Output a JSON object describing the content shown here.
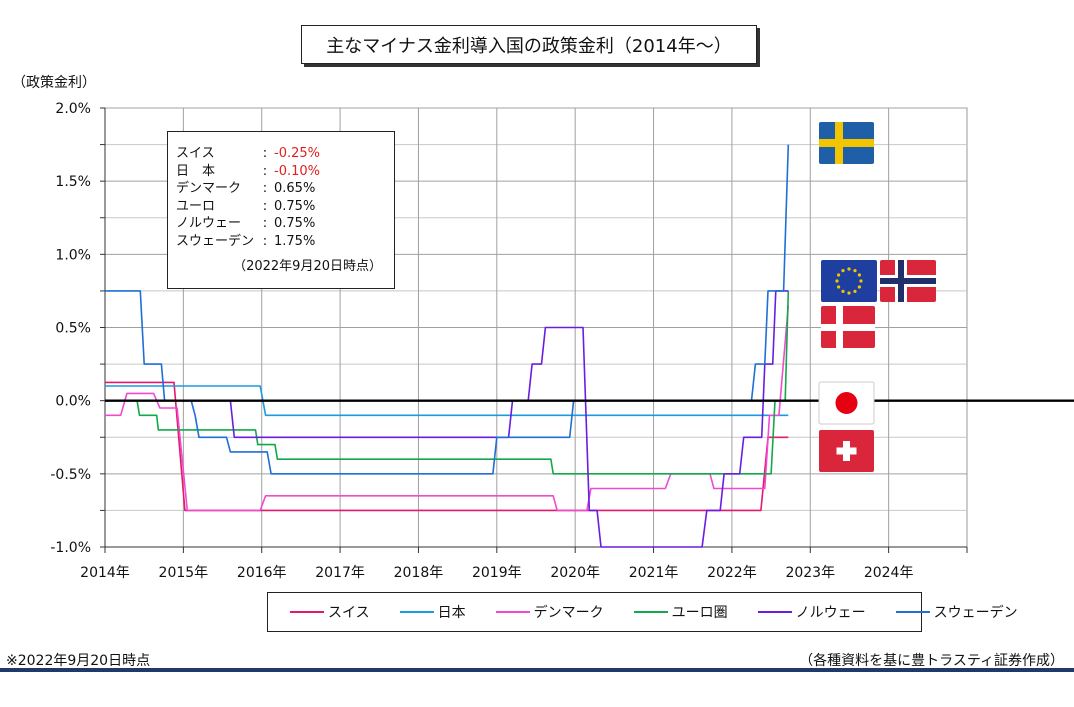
{
  "title": "主なマイナス金利導入国の政策金利（2014年～）",
  "ylabel": "（政策金利）",
  "footnote": "※2022年9月20日時点",
  "source": "（各種資料を基に豊トラスティ証券作成）",
  "infobox": {
    "rows": [
      {
        "name": "スイス",
        "value": "-0.25%",
        "negative": true
      },
      {
        "name": "日　本",
        "value": "-0.10%",
        "negative": true
      },
      {
        "name": "デンマーク",
        "value": "0.65%",
        "negative": false
      },
      {
        "name": "ユーロ",
        "value": "0.75%",
        "negative": false
      },
      {
        "name": "ノルウェー",
        "value": "0.75%",
        "negative": false
      },
      {
        "name": "スウェーデン",
        "value": "1.75%",
        "negative": false
      }
    ],
    "note": "（2022年9月20日時点）"
  },
  "flags": [
    {
      "icon": "sweden-flag-icon",
      "colors": [
        "#1f5fa8",
        "#f2c500"
      ]
    },
    {
      "icon": "eu-flag-icon",
      "colors": [
        "#1f3fa0",
        "#f2c500"
      ]
    },
    {
      "icon": "norway-flag-icon",
      "colors": [
        "#d9263a",
        "#ffffff",
        "#1f2f6b"
      ]
    },
    {
      "icon": "denmark-flag-icon",
      "colors": [
        "#d9263a",
        "#ffffff"
      ]
    },
    {
      "icon": "japan-flag-icon",
      "colors": [
        "#ffffff",
        "#e60012"
      ]
    },
    {
      "icon": "switzerland-flag-icon",
      "colors": [
        "#d9263a",
        "#ffffff"
      ]
    }
  ],
  "chart_data": {
    "type": "line",
    "x_unit": "year",
    "xlim": [
      2014,
      2025
    ],
    "ylim": [
      -1.0,
      2.0
    ],
    "yticks": [
      2.0,
      1.5,
      1.0,
      0.5,
      0.0,
      -0.5,
      -1.0
    ],
    "ytick_labels": [
      "2.0%",
      "1.5%",
      "1.0%",
      "0.5%",
      "0.0%",
      "-0.5%",
      "-1.0%"
    ],
    "xticks": [
      2014,
      2015,
      2016,
      2017,
      2018,
      2019,
      2020,
      2021,
      2022,
      2023,
      2024
    ],
    "xtick_labels": [
      "2014年",
      "2015年",
      "2016年",
      "2017年",
      "2018年",
      "2019年",
      "2020年",
      "2021年",
      "2022年",
      "2023年",
      "2024年"
    ],
    "grid": true,
    "legend_position": "bottom",
    "series": [
      {
        "name": "スイス",
        "color": "#e3196d",
        "points": [
          [
            2014.0,
            0.125
          ],
          [
            2014.88,
            0.125
          ],
          [
            2015.02,
            -0.75
          ],
          [
            2022.37,
            -0.75
          ],
          [
            2022.46,
            -0.25
          ],
          [
            2022.72,
            -0.25
          ]
        ]
      },
      {
        "name": "日本",
        "color": "#1a9be0",
        "points": [
          [
            2014.0,
            0.1
          ],
          [
            2015.98,
            0.1
          ],
          [
            2016.05,
            -0.1
          ],
          [
            2022.72,
            -0.1
          ]
        ]
      },
      {
        "name": "デンマーク",
        "color": "#f04bd0",
        "points": [
          [
            2014.0,
            -0.1
          ],
          [
            2014.2,
            -0.1
          ],
          [
            2014.28,
            0.05
          ],
          [
            2014.62,
            0.05
          ],
          [
            2014.7,
            -0.05
          ],
          [
            2014.92,
            -0.05
          ],
          [
            2015.05,
            -0.75
          ],
          [
            2015.98,
            -0.75
          ],
          [
            2016.05,
            -0.65
          ],
          [
            2019.72,
            -0.65
          ],
          [
            2019.77,
            -0.75
          ],
          [
            2020.15,
            -0.75
          ],
          [
            2020.2,
            -0.6
          ],
          [
            2021.15,
            -0.6
          ],
          [
            2021.22,
            -0.5
          ],
          [
            2021.72,
            -0.5
          ],
          [
            2021.77,
            -0.6
          ],
          [
            2022.42,
            -0.6
          ],
          [
            2022.48,
            -0.1
          ],
          [
            2022.6,
            -0.1
          ],
          [
            2022.72,
            0.65
          ]
        ]
      },
      {
        "name": "ユーロ圏",
        "color": "#13a84a",
        "points": [
          [
            2014.0,
            0.0
          ],
          [
            2014.41,
            0.0
          ],
          [
            2014.44,
            -0.1
          ],
          [
            2014.66,
            -0.1
          ],
          [
            2014.68,
            -0.2
          ],
          [
            2015.92,
            -0.2
          ],
          [
            2015.95,
            -0.3
          ],
          [
            2016.17,
            -0.3
          ],
          [
            2016.2,
            -0.4
          ],
          [
            2019.69,
            -0.4
          ],
          [
            2019.72,
            -0.5
          ],
          [
            2022.5,
            -0.5
          ],
          [
            2022.55,
            0.0
          ],
          [
            2022.68,
            0.0
          ],
          [
            2022.72,
            0.75
          ]
        ]
      },
      {
        "name": "ノルウェー",
        "color": "#6a1de0",
        "points": [
          [
            2014.0,
            0.0
          ],
          [
            2015.6,
            0.0
          ],
          [
            2015.65,
            -0.25
          ],
          [
            2019.15,
            -0.25
          ],
          [
            2019.2,
            0.0
          ],
          [
            2019.4,
            0.0
          ],
          [
            2019.45,
            0.25
          ],
          [
            2019.57,
            0.25
          ],
          [
            2019.62,
            0.5
          ],
          [
            2020.1,
            0.5
          ],
          [
            2020.18,
            -0.75
          ],
          [
            2020.28,
            -0.75
          ],
          [
            2020.33,
            -1.0
          ],
          [
            2021.62,
            -1.0
          ],
          [
            2021.68,
            -0.75
          ],
          [
            2021.85,
            -0.75
          ],
          [
            2021.9,
            -0.5
          ],
          [
            2022.1,
            -0.5
          ],
          [
            2022.15,
            -0.25
          ],
          [
            2022.38,
            -0.25
          ],
          [
            2022.42,
            0.25
          ],
          [
            2022.52,
            0.25
          ],
          [
            2022.56,
            0.75
          ],
          [
            2022.72,
            0.75
          ]
        ]
      },
      {
        "name": "スウェーデン",
        "color": "#1f6fd6",
        "points": [
          [
            2014.0,
            0.75
          ],
          [
            2014.45,
            0.75
          ],
          [
            2014.5,
            0.25
          ],
          [
            2014.72,
            0.25
          ],
          [
            2014.76,
            0.0
          ],
          [
            2015.1,
            0.0
          ],
          [
            2015.15,
            -0.1
          ],
          [
            2015.2,
            -0.25
          ],
          [
            2015.55,
            -0.25
          ],
          [
            2015.6,
            -0.35
          ],
          [
            2016.07,
            -0.35
          ],
          [
            2016.12,
            -0.5
          ],
          [
            2018.95,
            -0.5
          ],
          [
            2019.0,
            -0.25
          ],
          [
            2019.93,
            -0.25
          ],
          [
            2019.98,
            0.0
          ],
          [
            2022.25,
            0.0
          ],
          [
            2022.3,
            0.25
          ],
          [
            2022.42,
            0.25
          ],
          [
            2022.46,
            0.75
          ],
          [
            2022.66,
            0.75
          ],
          [
            2022.72,
            1.75
          ]
        ]
      }
    ]
  }
}
